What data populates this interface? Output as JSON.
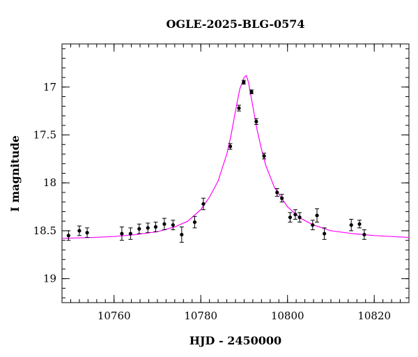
{
  "chart_data": {
    "type": "scatter",
    "title": "OGLE-2025-BLG-0574",
    "xlabel": "HJD - 2450000",
    "ylabel": "I magnitude",
    "xlim": [
      10748,
      10828
    ],
    "ylim": [
      19.25,
      16.55
    ],
    "y_inverted": true,
    "x_major_ticks": [
      10760,
      10780,
      10800,
      10820
    ],
    "x_minor_step": 2,
    "y_major_ticks": [
      17,
      17.5,
      18,
      18.5,
      19
    ],
    "y_tick_labels": [
      "17",
      "17.5",
      "18",
      "18.5",
      "19"
    ],
    "y_minor_step": 0.1,
    "grid": false,
    "model_color": "#ff00ff",
    "points": [
      {
        "x": 10749.5,
        "y": 18.55,
        "err": 0.05
      },
      {
        "x": 10752.0,
        "y": 18.5,
        "err": 0.05
      },
      {
        "x": 10753.8,
        "y": 18.52,
        "err": 0.05
      },
      {
        "x": 10761.8,
        "y": 18.53,
        "err": 0.07
      },
      {
        "x": 10763.8,
        "y": 18.53,
        "err": 0.06
      },
      {
        "x": 10765.8,
        "y": 18.48,
        "err": 0.05
      },
      {
        "x": 10767.8,
        "y": 18.47,
        "err": 0.05
      },
      {
        "x": 10769.6,
        "y": 18.46,
        "err": 0.05
      },
      {
        "x": 10771.6,
        "y": 18.43,
        "err": 0.06
      },
      {
        "x": 10773.6,
        "y": 18.44,
        "err": 0.05
      },
      {
        "x": 10775.6,
        "y": 18.54,
        "err": 0.08
      },
      {
        "x": 10778.6,
        "y": 18.41,
        "err": 0.06
      },
      {
        "x": 10780.6,
        "y": 18.22,
        "err": 0.06
      },
      {
        "x": 10786.8,
        "y": 17.62,
        "err": 0.03
      },
      {
        "x": 10788.8,
        "y": 17.22,
        "err": 0.03
      },
      {
        "x": 10789.9,
        "y": 16.95,
        "err": 0.02
      },
      {
        "x": 10791.7,
        "y": 17.05,
        "err": 0.02
      },
      {
        "x": 10792.8,
        "y": 17.36,
        "err": 0.03
      },
      {
        "x": 10794.6,
        "y": 17.72,
        "err": 0.03
      },
      {
        "x": 10797.6,
        "y": 18.1,
        "err": 0.04
      },
      {
        "x": 10798.7,
        "y": 18.16,
        "err": 0.04
      },
      {
        "x": 10800.6,
        "y": 18.36,
        "err": 0.05
      },
      {
        "x": 10801.8,
        "y": 18.33,
        "err": 0.05
      },
      {
        "x": 10802.8,
        "y": 18.36,
        "err": 0.05
      },
      {
        "x": 10805.8,
        "y": 18.44,
        "err": 0.05
      },
      {
        "x": 10806.8,
        "y": 18.34,
        "err": 0.07
      },
      {
        "x": 10808.5,
        "y": 18.53,
        "err": 0.06
      },
      {
        "x": 10814.7,
        "y": 18.44,
        "err": 0.06
      },
      {
        "x": 10816.6,
        "y": 18.43,
        "err": 0.04
      },
      {
        "x": 10817.7,
        "y": 18.54,
        "err": 0.05
      }
    ],
    "model": {
      "x": [
        10748,
        10755,
        10760,
        10765,
        10770,
        10774,
        10777,
        10780,
        10782,
        10784,
        10786,
        10787,
        10788,
        10789,
        10790,
        10790.5,
        10791,
        10792,
        10793,
        10794,
        10795,
        10797,
        10800,
        10803,
        10806,
        10810,
        10815,
        10820,
        10828
      ],
      "y": [
        18.58,
        18.57,
        18.56,
        18.54,
        18.51,
        18.46,
        18.4,
        18.28,
        18.15,
        17.98,
        17.7,
        17.5,
        17.25,
        17.02,
        16.9,
        16.88,
        16.95,
        17.2,
        17.45,
        17.65,
        17.82,
        18.05,
        18.25,
        18.37,
        18.44,
        18.5,
        18.53,
        18.55,
        18.57
      ]
    }
  }
}
